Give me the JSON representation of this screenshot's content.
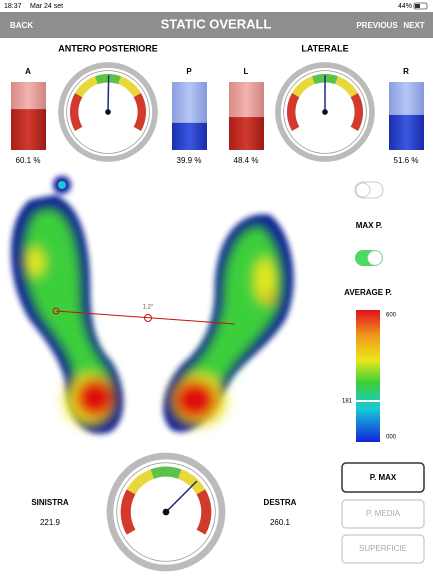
{
  "status_bar": {
    "time": "18:37",
    "date": "Mar 24 set",
    "battery": "44%"
  },
  "nav": {
    "back": "BACK",
    "title": "STATIC OVERALL",
    "previous": "PREVIOUS",
    "next": "NEXT"
  },
  "balance": {
    "antero_posteriore": {
      "title": "ANTERO POSTERIORE",
      "left": {
        "name": "A",
        "value": 60.1,
        "label": "60.1 %"
      },
      "right": {
        "name": "P",
        "value": 39.9,
        "label": "39.9 %"
      }
    },
    "laterale": {
      "title": "LATERALE",
      "left": {
        "name": "L",
        "value": 48.4,
        "label": "48.4 %"
      },
      "right": {
        "name": "R",
        "value": 51.6,
        "label": "51.6 %"
      }
    }
  },
  "footprint": {
    "angle": "1.2°"
  },
  "side_panel": {
    "max_p": "MAX P.",
    "average_p": "AVERAGE P.",
    "scale_max": "600",
    "scale_mark": "181",
    "scale_min": "000"
  },
  "weights": {
    "left_label": "SINISTRA",
    "left_value": "221.9",
    "right_label": "DESTRA",
    "right_value": "260.1"
  },
  "buttons": [
    "P. MAX",
    "P. MEDIA",
    "SUPERFICIE"
  ]
}
